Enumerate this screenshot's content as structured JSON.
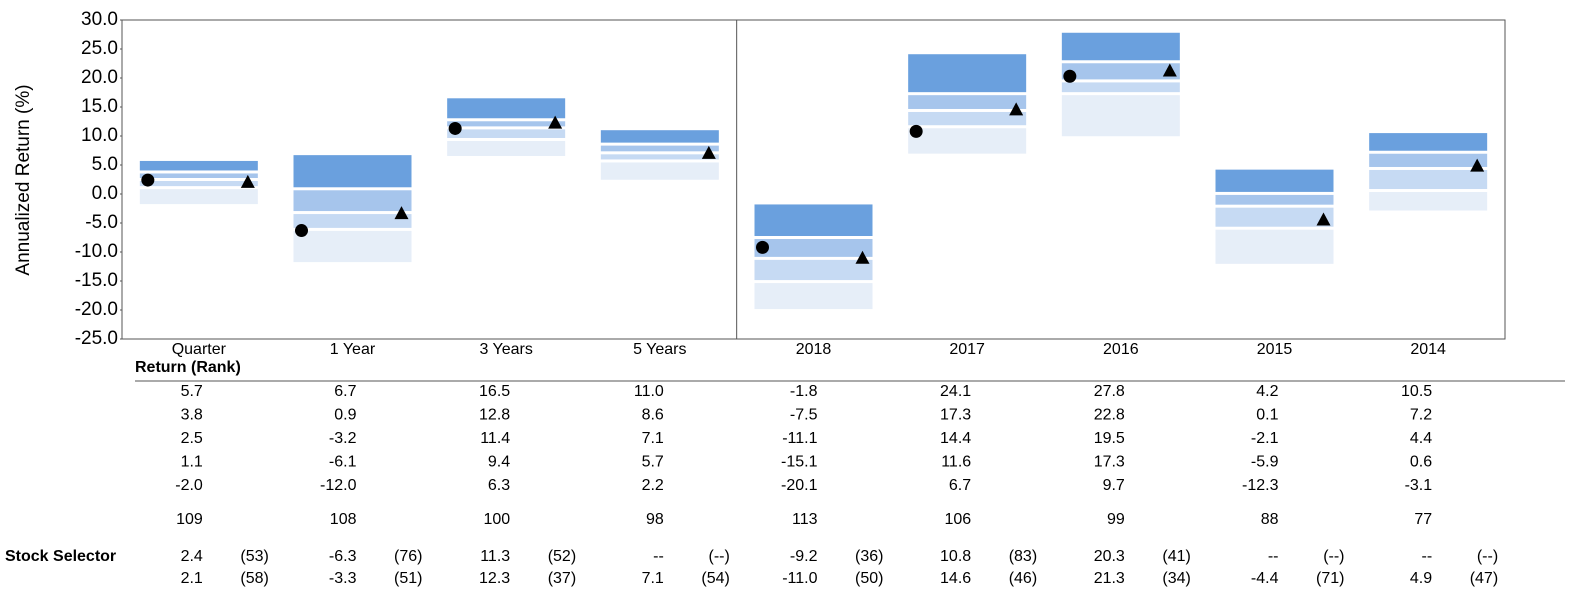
{
  "chart_data": {
    "type": "floating_bar",
    "ylabel": "Annualized Return (%)",
    "ylim": [
      -25,
      30
    ],
    "yticks": [
      {
        "value": 30,
        "label": "30.0"
      },
      {
        "value": 25,
        "label": "25.0"
      },
      {
        "value": 20,
        "label": "20.0"
      },
      {
        "value": 15,
        "label": "15.0"
      },
      {
        "value": 10,
        "label": "10.0"
      },
      {
        "value": 5,
        "label": "5.0"
      },
      {
        "value": 0,
        "label": "0.0"
      },
      {
        "value": -5,
        "label": "-5.0"
      },
      {
        "value": -10,
        "label": "-10.0"
      },
      {
        "value": -15,
        "label": "-15.0"
      },
      {
        "value": -20,
        "label": "-20.0"
      },
      {
        "value": -25,
        "label": "-25.0"
      }
    ],
    "categories": [
      "Quarter",
      "1 Year",
      "3 Years",
      "5 Years",
      "2018",
      "2017",
      "2016",
      "2015",
      "2014"
    ],
    "table_header": "Return (Rank)",
    "band_colors": [
      "#6aa0de",
      "#a6c5ec",
      "#c6daf3",
      "#e6eef8"
    ],
    "breaks": [
      {
        "values": [
          5.7,
          6.7,
          16.5,
          11.0,
          -1.8,
          24.1,
          27.8,
          4.2,
          10.5
        ],
        "value_labels": [
          "5.7",
          "6.7",
          "16.5",
          "11.0",
          "-1.8",
          "24.1",
          "27.8",
          "4.2",
          "10.5"
        ]
      },
      {
        "values": [
          3.8,
          0.9,
          12.8,
          8.6,
          -7.5,
          17.3,
          22.8,
          0.1,
          7.2
        ],
        "value_labels": [
          "3.8",
          "0.9",
          "12.8",
          "8.6",
          "-7.5",
          "17.3",
          "22.8",
          "0.1",
          "7.2"
        ]
      },
      {
        "values": [
          2.5,
          -3.2,
          11.4,
          7.1,
          -11.1,
          14.4,
          19.5,
          -2.1,
          4.4
        ],
        "value_labels": [
          "2.5",
          "-3.2",
          "11.4",
          "7.1",
          "-11.1",
          "14.4",
          "19.5",
          "-2.1",
          "4.4"
        ]
      },
      {
        "values": [
          1.1,
          -6.1,
          9.4,
          5.7,
          -15.1,
          11.6,
          17.3,
          -5.9,
          0.6
        ],
        "value_labels": [
          "1.1",
          "-6.1",
          "9.4",
          "5.7",
          "-15.1",
          "11.6",
          "17.3",
          "-5.9",
          "0.6"
        ]
      },
      {
        "values": [
          -2.0,
          -12.0,
          6.3,
          2.2,
          -20.1,
          6.7,
          9.7,
          -12.3,
          -3.1
        ],
        "value_labels": [
          "-2.0",
          "-12.0",
          "6.3",
          "2.2",
          "-20.1",
          "6.7",
          "9.7",
          "-12.3",
          "-3.1"
        ]
      }
    ],
    "counts": [
      109,
      108,
      100,
      98,
      113,
      106,
      99,
      88,
      77
    ],
    "series": [
      {
        "name": "Stock Selector",
        "marker": "circle",
        "color": "#000000",
        "values": [
          2.4,
          -6.3,
          11.3,
          null,
          -9.2,
          10.8,
          20.3,
          null,
          null
        ],
        "value_labels": [
          "2.4",
          "-6.3",
          "11.3",
          "--",
          "-9.2",
          "10.8",
          "20.3",
          "--",
          "--"
        ],
        "ranks": [
          53,
          76,
          52,
          null,
          36,
          83,
          41,
          null,
          null
        ],
        "rank_labels": [
          "(53)",
          "(76)",
          "(52)",
          "(--)",
          "(36)",
          "(83)",
          "(41)",
          "(--)",
          "(--)"
        ]
      },
      {
        "marker": "triangle",
        "color": "#000000",
        "values": [
          2.1,
          -3.3,
          12.3,
          7.1,
          -11.0,
          14.6,
          21.3,
          -4.4,
          4.9
        ],
        "value_labels": [
          "2.1",
          "-3.3",
          "12.3",
          "7.1",
          "-11.0",
          "14.6",
          "21.3",
          "-4.4",
          "4.9"
        ],
        "ranks": [
          58,
          51,
          37,
          54,
          50,
          46,
          34,
          71,
          47
        ],
        "rank_labels": [
          "(58)",
          "(51)",
          "(37)",
          "(54)",
          "(50)",
          "(46)",
          "(34)",
          "(71)",
          "(47)"
        ]
      }
    ]
  }
}
